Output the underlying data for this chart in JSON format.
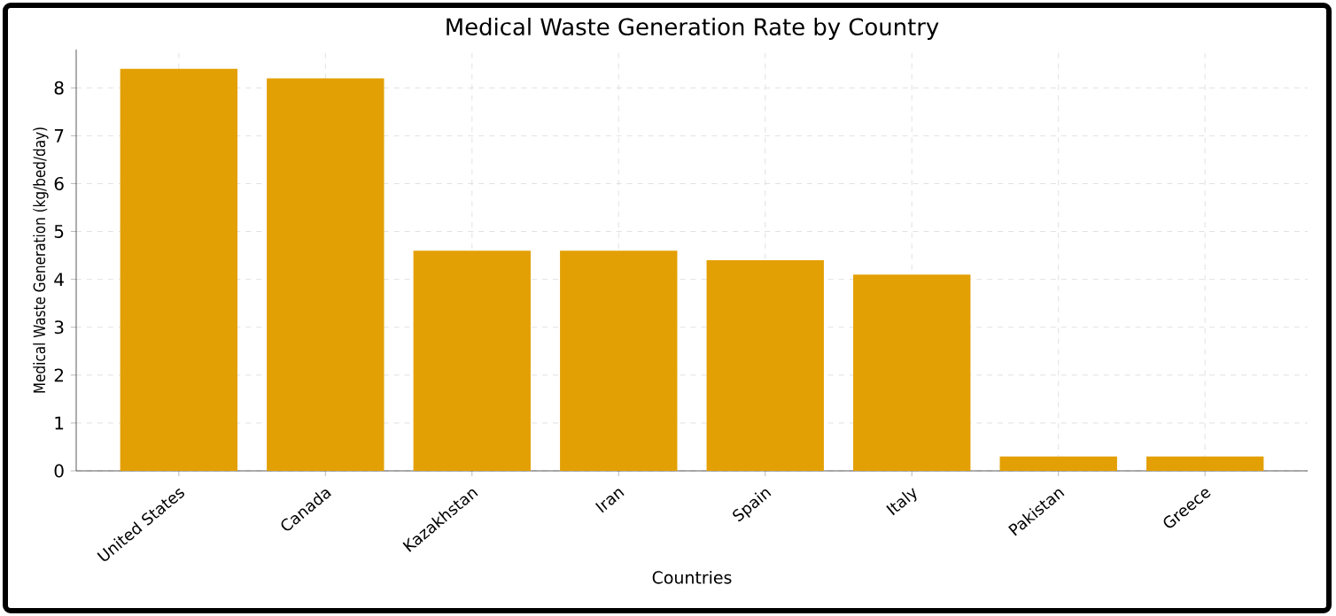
{
  "chart_data": {
    "type": "bar",
    "title": "Medical Waste Generation Rate by Country",
    "xlabel": "Countries",
    "ylabel": "Medical Waste Generation (kg/bed/day)",
    "categories": [
      "United States",
      "Canada",
      "Kazakhstan",
      "Iran",
      "Spain",
      "Italy",
      "Pakistan",
      "Greece"
    ],
    "values": [
      8.4,
      8.2,
      4.6,
      4.6,
      4.4,
      4.1,
      0.3,
      0.3
    ],
    "color": "#e3a004",
    "ylim": [
      0,
      8.8
    ],
    "yticks": [
      0,
      1,
      2,
      3,
      4,
      5,
      6,
      7,
      8
    ],
    "grid": true
  }
}
